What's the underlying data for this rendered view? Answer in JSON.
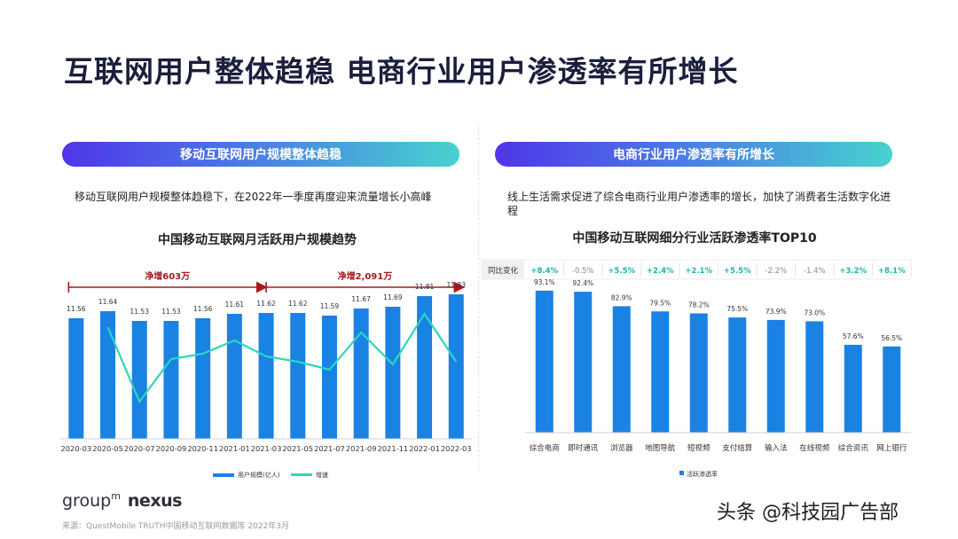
{
  "page_title": "互联网用户整体趋稳 电商行业用户渗透率有所增长",
  "left": {
    "pill_label": "移动互联网用户规模整体趋稳",
    "description": "移动互联网用户规模整体趋稳下，在2022年一季度再度迎来流量增长小高峰",
    "chart_title": "中国移动互联网月活跃用户规模趋势"
  },
  "right": {
    "pill_label": "电商行业用户渗透率有所增长",
    "description": "线上生活需求促进了综合电商行业用户渗透率的增长，加快了消费者生活数字化进程",
    "chart_title": "中国移动互联网细分行业活跃渗透率TOP10",
    "yoy_label": "同比变化"
  },
  "footer": {
    "logo_group": "group",
    "logo_m": "m",
    "logo_nexus": "nexus",
    "source": "来源：QuestMobile TRUTH中国移动互联网数据库 2022年3月",
    "watermark": "头条 @科技园广告部"
  },
  "colors": {
    "bar": "#1a82e2",
    "line": "#2bd6c0",
    "arrow": "#a8181e",
    "positive": "#1bb7a4",
    "negative": "#8a8a8a"
  },
  "chart_data": [
    {
      "type": "bar",
      "title": "中国移动互联网月活跃用户规模趋势",
      "categories": [
        "2020-03",
        "2020-05",
        "2020-07",
        "2020-09",
        "2020-11",
        "2021-01",
        "2021-03",
        "2021-05",
        "2021-07",
        "2021-09",
        "2021-11",
        "2022-01",
        "2022-03"
      ],
      "series": [
        {
          "name": "用户规模(亿人)",
          "kind": "bar",
          "values": [
            11.56,
            11.64,
            11.53,
            11.53,
            11.56,
            11.61,
            11.62,
            11.62,
            11.59,
            11.67,
            11.69,
            11.81,
            11.83
          ]
        },
        {
          "name": "增速",
          "kind": "line",
          "values": [
            null,
            0.6,
            -0.8,
            0.0,
            0.1,
            0.35,
            0.05,
            -0.05,
            -0.2,
            0.5,
            -0.1,
            0.85,
            -0.05
          ]
        }
      ],
      "labels": [
        "11.56",
        "11.64",
        "11.53",
        "11.53",
        "11.56",
        "11.61",
        "11.62",
        "11.62",
        "11.59",
        "11.67",
        "11.69",
        "11.81",
        "11.83"
      ],
      "annotations": [
        {
          "text": "净增603万",
          "from": "2020-03",
          "to": "2021-03"
        },
        {
          "text": "净增2,091万",
          "from": "2021-03",
          "to": "2022-03"
        }
      ],
      "legend": [
        "用户规模(亿人)",
        "增速"
      ],
      "legend_position": "bottom"
    },
    {
      "type": "bar",
      "title": "中国移动互联网细分行业活跃渗透率TOP10",
      "categories": [
        "综合电商",
        "即时通讯",
        "浏览器",
        "地图导航",
        "短视频",
        "支付结算",
        "输入法",
        "在线视频",
        "综合资讯",
        "网上银行"
      ],
      "values": [
        93.1,
        92.4,
        82.9,
        79.5,
        78.2,
        75.5,
        73.9,
        73.0,
        57.6,
        56.5
      ],
      "labels": [
        "93.1%",
        "92.4%",
        "82.9%",
        "79.5%",
        "78.2%",
        "75.5%",
        "73.9%",
        "73.0%",
        "57.6%",
        "56.5%"
      ],
      "yoy_change": [
        "+8.4%",
        "-0.5%",
        "+5.5%",
        "+2.4%",
        "+2.1%",
        "+5.5%",
        "-2.2%",
        "-1.4%",
        "+3.2%",
        "+8.1%"
      ],
      "legend": [
        "活跃渗透率"
      ],
      "legend_position": "bottom",
      "ylim": [
        0,
        100
      ]
    }
  ]
}
